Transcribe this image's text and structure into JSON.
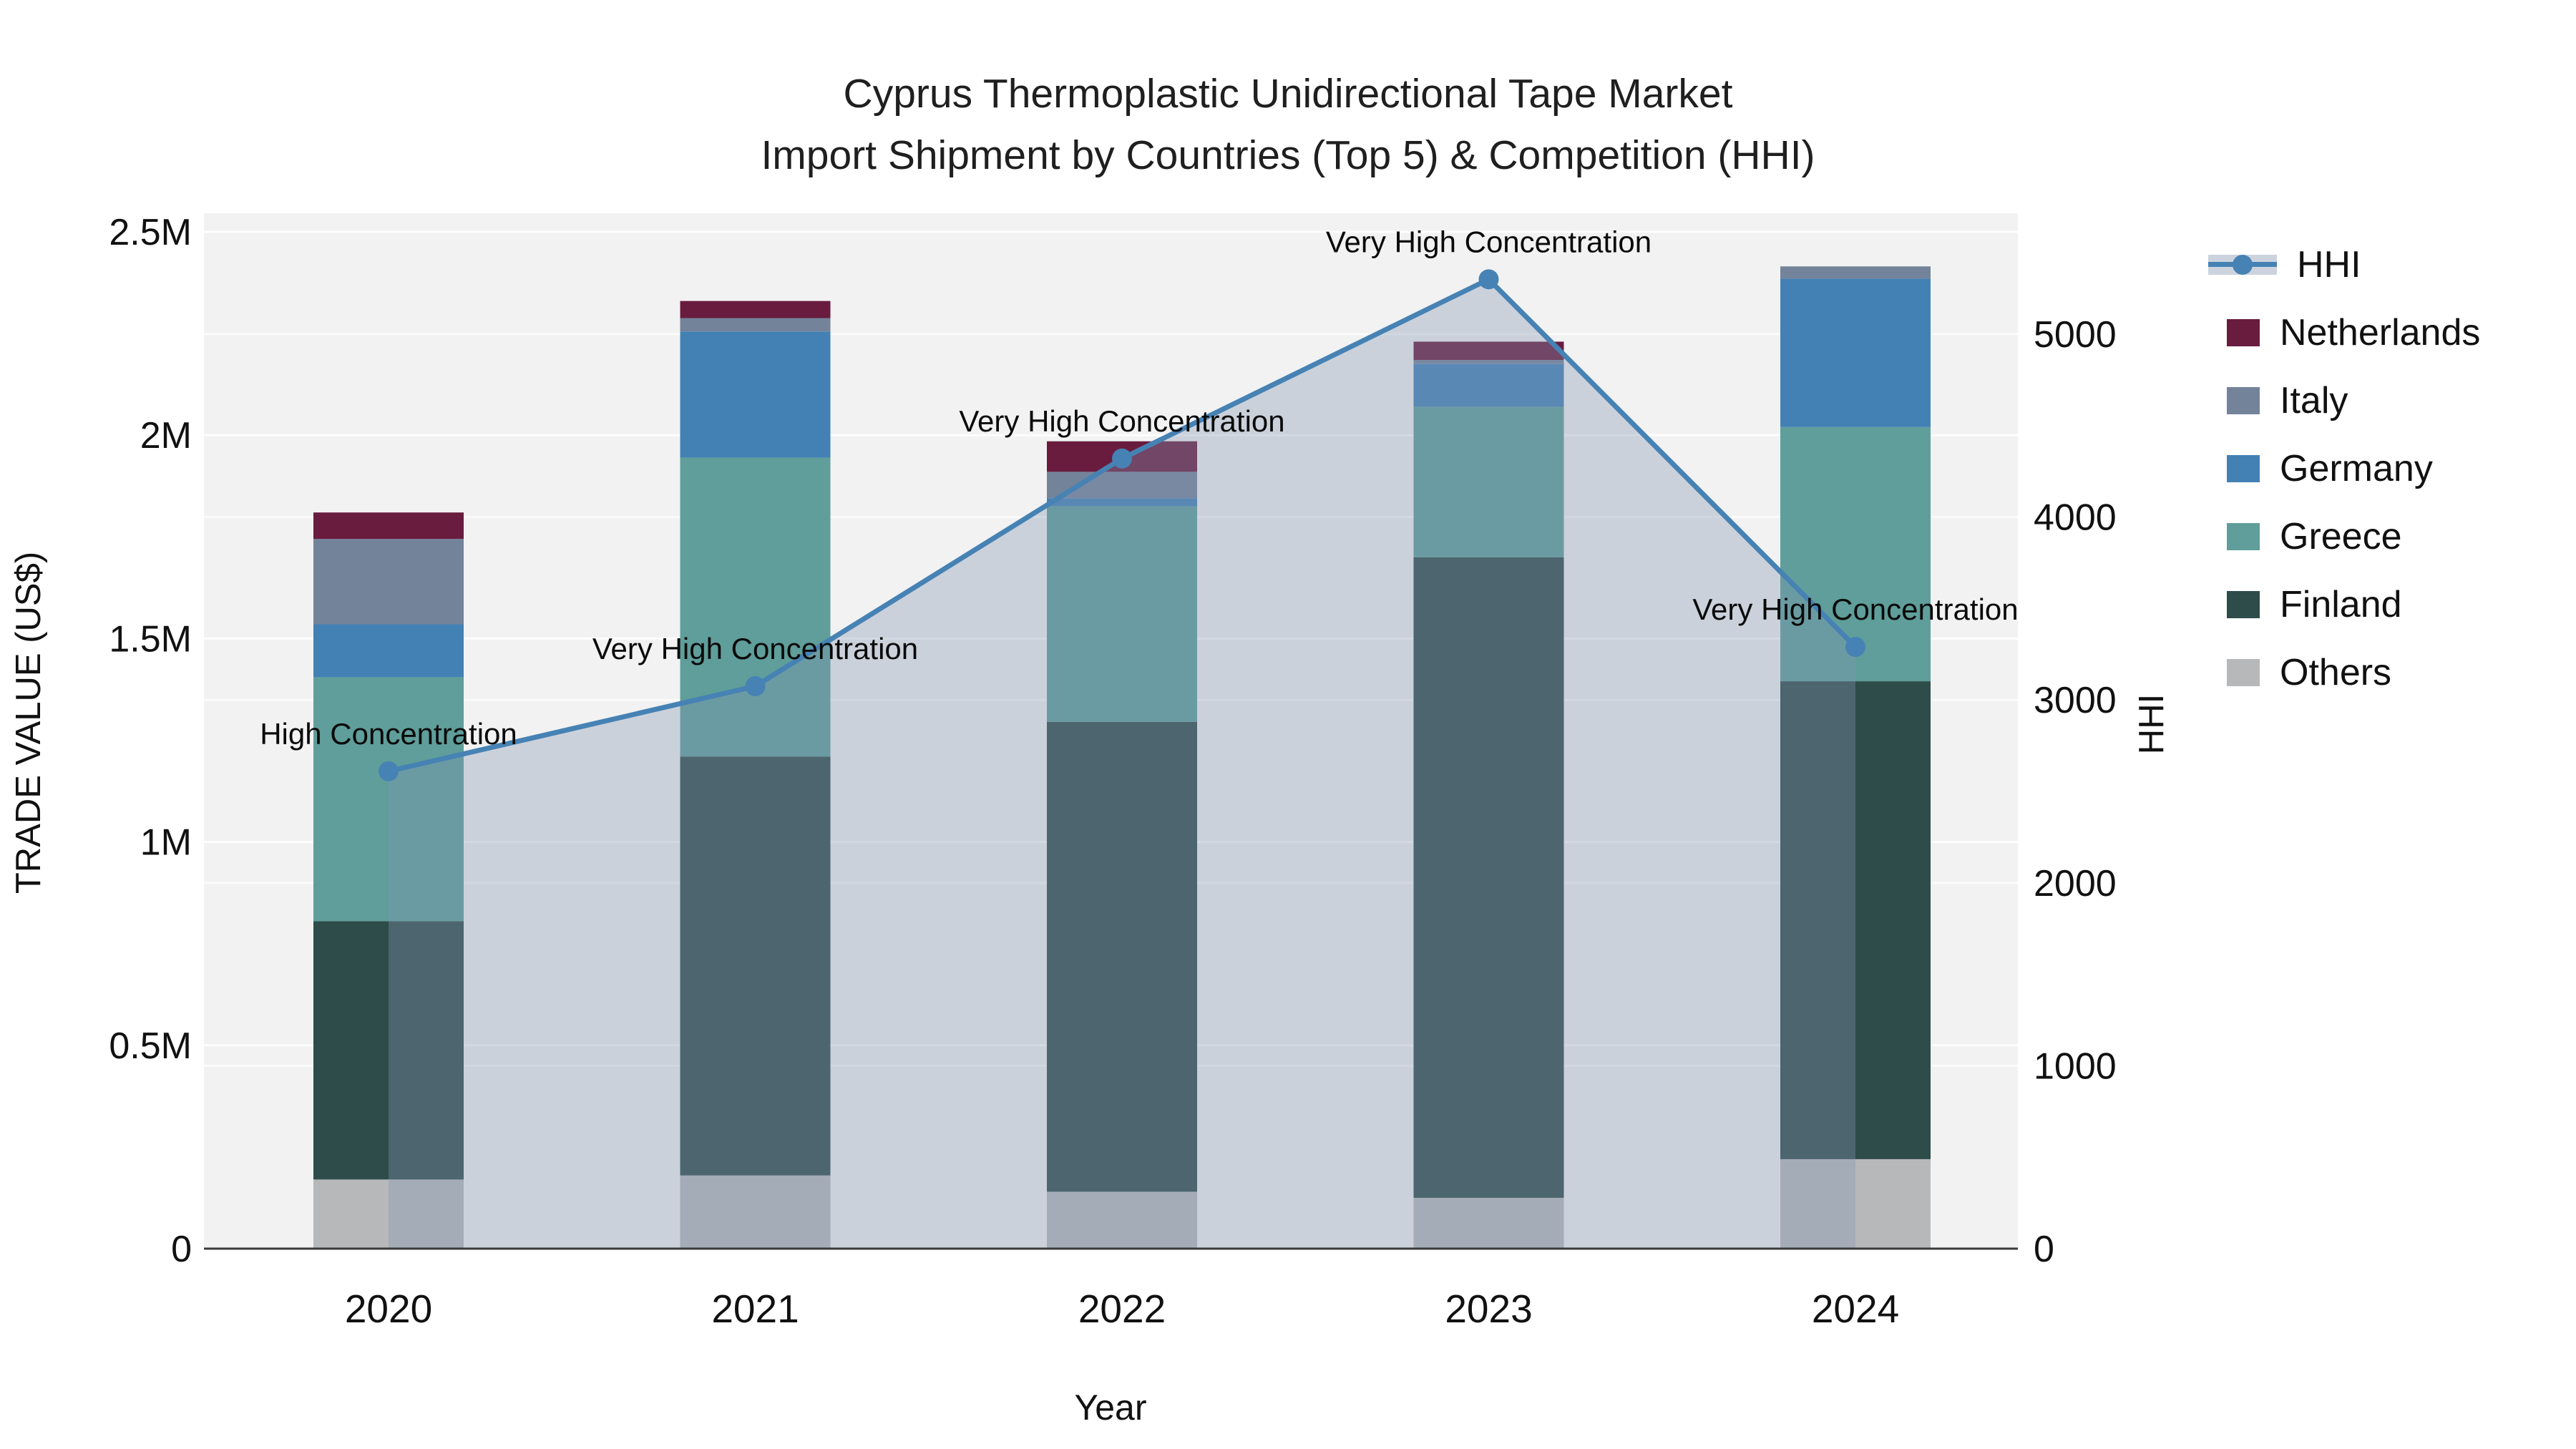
{
  "title": {
    "line1": "Cyprus Thermoplastic Unidirectional Tape Market",
    "line2": "Import Shipment by Countries (Top 5) & Competition (HHI)"
  },
  "chart_data": {
    "type": "combo: stacked-bar (left axis) + line with area fill (right axis)",
    "categories": [
      "2020",
      "2021",
      "2022",
      "2023",
      "2024"
    ],
    "xlabel": "Year",
    "ylabel_left": "TRADE VALUE (US$)",
    "ylabel_right": "HHI",
    "ylim_left": [
      0,
      2540000
    ],
    "ylim_right": [
      0,
      5650
    ],
    "yticks_left_labels": [
      "0",
      "0.5M",
      "1M",
      "1.5M",
      "2M",
      "2.5M"
    ],
    "yticks_left_values": [
      0,
      500000,
      1000000,
      1500000,
      2000000,
      2500000
    ],
    "yticks_right_labels": [
      "0",
      "1000",
      "2000",
      "3000",
      "4000",
      "5000"
    ],
    "yticks_right_values": [
      0,
      1000,
      2000,
      3000,
      4000,
      5000
    ],
    "grid": true,
    "stack_order_bottom_to_top": [
      "Others",
      "Finland",
      "Greece",
      "Germany",
      "Italy",
      "Netherlands"
    ],
    "series": [
      {
        "name": "Others",
        "color": "#b6b8ba",
        "values": [
          170000,
          180000,
          140000,
          125000,
          220000
        ]
      },
      {
        "name": "Finland",
        "color": "#2e4c4a",
        "values": [
          635000,
          1030000,
          1155000,
          1575000,
          1175000
        ]
      },
      {
        "name": "Greece",
        "color": "#5f9e9a",
        "values": [
          600000,
          735000,
          530000,
          370000,
          625000
        ]
      },
      {
        "name": "Germany",
        "color": "#4381b5",
        "values": [
          130000,
          310000,
          20000,
          105000,
          365000
        ]
      },
      {
        "name": "Italy",
        "color": "#73839a",
        "values": [
          210000,
          33000,
          65000,
          10000,
          30000
        ]
      },
      {
        "name": "Netherlands",
        "color": "#691c3e",
        "values": [
          65000,
          42000,
          75000,
          45000,
          0
        ]
      }
    ],
    "line": {
      "name": "HHI",
      "color": "#4682b4",
      "values": [
        2610,
        3075,
        4320,
        5300,
        3290
      ],
      "area_fill_color": "#8495b2",
      "area_fill_opacity": 0.35,
      "annotations": [
        "High Concentration",
        "Very High Concentration",
        "Very High Concentration",
        "Very High Concentration",
        "Very High Concentration"
      ]
    },
    "legend_position": "right",
    "legend_order": [
      "HHI",
      "Netherlands",
      "Italy",
      "Germany",
      "Greece",
      "Finland",
      "Others"
    ],
    "colors": {
      "plot_bg": "#f2f2f2",
      "grid": "#ffffff",
      "axis_line": "#3a3a3a",
      "text": "#111111",
      "hhi_legend_band": "#ccd3de"
    }
  }
}
